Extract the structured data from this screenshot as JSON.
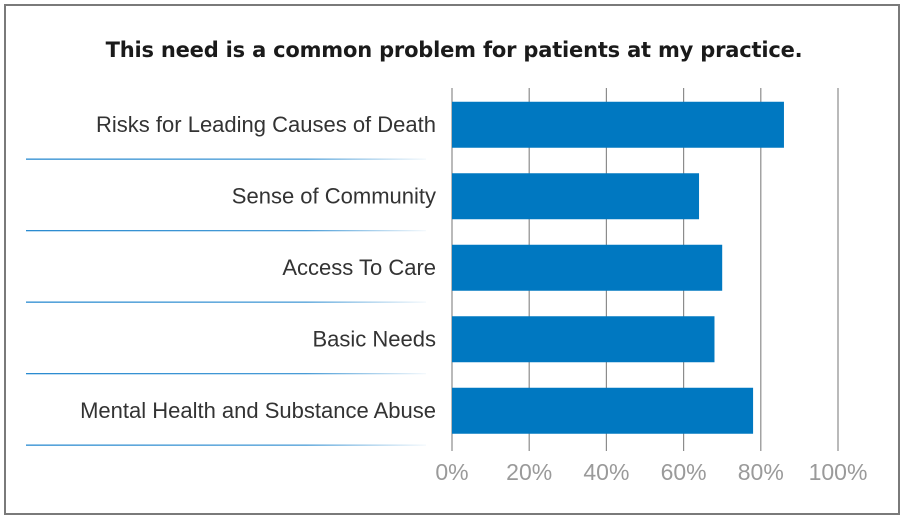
{
  "chart_data": {
    "type": "bar",
    "orientation": "horizontal",
    "title": "This need is a common problem for patients at my practice.",
    "xlabel": "",
    "ylabel": "",
    "categories": [
      "Risks for Leading Causes of Death",
      "Sense of Community",
      "Access To Care",
      "Basic Needs",
      "Mental Health and Substance Abuse"
    ],
    "values": [
      86,
      64,
      70,
      68,
      78
    ],
    "xlim": [
      0,
      100
    ],
    "ticks": [
      0,
      20,
      40,
      60,
      80,
      100
    ],
    "tick_labels": [
      "0%",
      "20%",
      "40%",
      "60%",
      "80%",
      "100%"
    ],
    "grid": "vertical",
    "legend": "none",
    "bar_color": "#0078c1",
    "separator_color": "#2a8bd0",
    "grid_color": "#8c8c8c"
  }
}
